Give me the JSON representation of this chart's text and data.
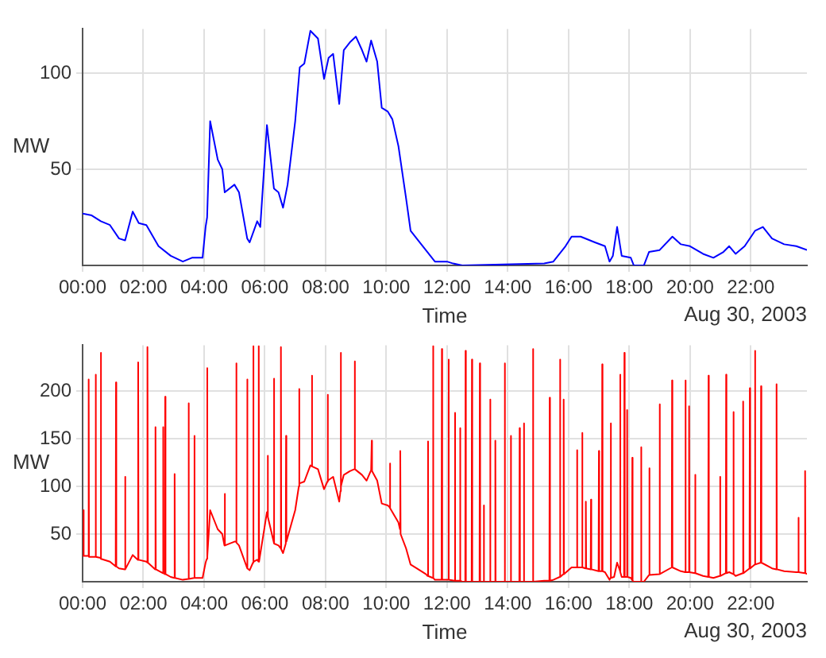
{
  "chart_data": [
    {
      "type": "line",
      "xlabel": "Time",
      "ylabel": "MW",
      "annotations": [
        "Aug 30, 2003"
      ],
      "grid": true,
      "xlim": [
        0,
        23.85
      ],
      "ylim": [
        0,
        123
      ],
      "xticks": [
        {
          "value": 0,
          "label": "00:00"
        },
        {
          "value": 2,
          "label": "02:00"
        },
        {
          "value": 4,
          "label": "04:00"
        },
        {
          "value": 6,
          "label": "06:00"
        },
        {
          "value": 8,
          "label": "08:00"
        },
        {
          "value": 10,
          "label": "10:00"
        },
        {
          "value": 12,
          "label": "12:00"
        },
        {
          "value": 14,
          "label": "14:00"
        },
        {
          "value": 16,
          "label": "16:00"
        },
        {
          "value": 18,
          "label": "18:00"
        },
        {
          "value": 20,
          "label": "20:00"
        },
        {
          "value": 22,
          "label": "22:00"
        }
      ],
      "yticks": [
        50,
        100
      ],
      "series": [
        {
          "color": "#0000ff",
          "x": [
            0,
            0.3,
            0.6,
            0.9,
            1.2,
            1.4,
            1.65,
            1.85,
            2.1,
            2.5,
            2.9,
            3.3,
            3.6,
            3.95,
            4.05,
            4.1,
            4.2,
            4.45,
            4.6,
            4.68,
            5.0,
            5.15,
            5.42,
            5.5,
            5.75,
            5.85,
            6.07,
            6.3,
            6.45,
            6.6,
            6.75,
            7.0,
            7.15,
            7.3,
            7.5,
            7.75,
            7.95,
            8.1,
            8.25,
            8.45,
            8.6,
            8.8,
            9.0,
            9.2,
            9.35,
            9.5,
            9.7,
            9.85,
            10.05,
            10.2,
            10.4,
            10.65,
            10.8,
            11.0,
            11.3,
            11.6,
            12.0,
            12.2,
            12.5,
            15.2,
            15.5,
            15.9,
            16.1,
            16.4,
            16.87,
            17.2,
            17.35,
            17.46,
            17.6,
            17.75,
            18.05,
            18.15,
            18.48,
            18.65,
            19.0,
            19.42,
            19.7,
            20.0,
            20.43,
            20.77,
            21.1,
            21.29,
            21.5,
            21.8,
            22.14,
            22.4,
            22.7,
            23.1,
            23.5,
            23.85
          ],
          "values": [
            27,
            26,
            23,
            21,
            14,
            13,
            28,
            22,
            21,
            10,
            5,
            2,
            4,
            4,
            20,
            25,
            75,
            55,
            50,
            38,
            42,
            38,
            14,
            12,
            23,
            20,
            73,
            40,
            38,
            30,
            42,
            75,
            103,
            105,
            122,
            118,
            97,
            108,
            110,
            84,
            112,
            116,
            119,
            112,
            106,
            117,
            106,
            82,
            80,
            76,
            62,
            35,
            18,
            14,
            8,
            2,
            2,
            1,
            0,
            1,
            2,
            10,
            15,
            15,
            12,
            10,
            2,
            5,
            20,
            5,
            4,
            0,
            0,
            7,
            8,
            15,
            11,
            10,
            6,
            4,
            7,
            10,
            6,
            10,
            18,
            20,
            14,
            11,
            10,
            8
          ]
        }
      ]
    },
    {
      "type": "line",
      "xlabel": "Time",
      "ylabel": "MW",
      "annotations": [
        "Aug 30, 2003"
      ],
      "grid": true,
      "xlim": [
        0,
        23.85
      ],
      "ylim": [
        0,
        248
      ],
      "xticks": [
        {
          "value": 0,
          "label": "00:00"
        },
        {
          "value": 2,
          "label": "02:00"
        },
        {
          "value": 4,
          "label": "04:00"
        },
        {
          "value": 6,
          "label": "06:00"
        },
        {
          "value": 8,
          "label": "08:00"
        },
        {
          "value": 10,
          "label": "10:00"
        },
        {
          "value": 12,
          "label": "12:00"
        },
        {
          "value": 14,
          "label": "14:00"
        },
        {
          "value": 16,
          "label": "16:00"
        },
        {
          "value": 18,
          "label": "18:00"
        },
        {
          "value": 20,
          "label": "20:00"
        },
        {
          "value": 22,
          "label": "22:00"
        }
      ],
      "yticks": [
        50,
        100,
        150,
        200
      ],
      "series": [
        {
          "color": "#ff0000",
          "x": [
            0,
            0.03,
            0.04,
            0.19,
            0.2,
            0.21,
            0.42,
            0.43,
            0.44,
            0.59,
            0.6,
            0.61,
            0.9,
            1.09,
            1.1,
            1.11,
            1.2,
            1.39,
            1.4,
            1.41,
            1.65,
            1.82,
            1.83,
            1.84,
            2.1,
            2.13,
            2.14,
            2.15,
            2.39,
            2.4,
            2.41,
            2.64,
            2.65,
            2.66,
            2.71,
            2.72,
            2.73,
            2.9,
            3.02,
            3.03,
            3.04,
            3.3,
            3.48,
            3.49,
            3.5,
            3.67,
            3.68,
            3.69,
            3.95,
            4.05,
            4.09,
            4.1,
            4.11,
            4.2,
            4.45,
            4.6,
            4.67,
            4.68,
            4.69,
            5.0,
            5.05,
            5.06,
            5.07,
            5.15,
            5.41,
            5.42,
            5.43,
            5.5,
            5.61,
            5.62,
            5.63,
            5.75,
            5.79,
            5.8,
            5.81,
            6.07,
            6.09,
            6.1,
            6.11,
            6.29,
            6.3,
            6.31,
            6.45,
            6.52,
            6.53,
            6.54,
            6.6,
            6.69,
            6.7,
            6.71,
            7.0,
            7.12,
            7.13,
            7.14,
            7.3,
            7.5,
            7.54,
            7.55,
            7.56,
            7.75,
            7.95,
            8.06,
            8.07,
            8.08,
            8.25,
            8.45,
            8.49,
            8.5,
            8.51,
            8.6,
            8.8,
            8.95,
            8.96,
            8.97,
            9.2,
            9.35,
            9.5,
            9.51,
            9.52,
            9.53,
            9.7,
            9.85,
            10.05,
            10.11,
            10.12,
            10.13,
            10.4,
            10.45,
            10.46,
            10.47,
            10.65,
            10.8,
            11.0,
            11.3,
            11.36,
            11.37,
            11.38,
            11.53,
            11.54,
            11.55,
            11.6,
            11.82,
            11.83,
            11.84,
            12.04,
            12.05,
            12.06,
            12.25,
            12.26,
            12.27,
            12.42,
            12.43,
            12.44,
            12.5,
            12.6,
            12.61,
            12.62,
            12.81,
            12.82,
            12.83,
            13.07,
            13.08,
            13.09,
            13.2,
            13.21,
            13.22,
            13.41,
            13.42,
            13.43,
            13.58,
            13.59,
            13.6,
            13.89,
            13.9,
            13.91,
            14.09,
            14.1,
            14.11,
            14.38,
            14.39,
            14.4,
            14.52,
            14.53,
            14.54,
            14.82,
            14.83,
            14.84,
            15.2,
            15.37,
            15.38,
            15.39,
            15.5,
            15.71,
            15.72,
            15.73,
            15.83,
            15.84,
            15.85,
            16.1,
            16.27,
            16.28,
            16.29,
            16.44,
            16.45,
            16.46,
            16.56,
            16.57,
            16.58,
            16.73,
            16.74,
            16.75,
            16.99,
            17.0,
            17.01,
            17.1,
            17.11,
            17.12,
            17.2,
            17.35,
            17.38,
            17.39,
            17.4,
            17.5,
            17.6,
            17.69,
            17.7,
            17.71,
            17.75,
            17.83,
            17.84,
            17.85,
            17.92,
            17.93,
            17.94,
            18.05,
            18.09,
            18.1,
            18.11,
            18.15,
            18.38,
            18.39,
            18.4,
            18.48,
            18.65,
            18.66,
            18.67,
            18.99,
            19.0,
            19.01,
            19.4,
            19.41,
            19.42,
            19.7,
            19.84,
            19.85,
            19.86,
            19.96,
            19.97,
            19.98,
            20.16,
            20.17,
            20.18,
            20.43,
            20.6,
            20.61,
            20.62,
            20.77,
            20.98,
            20.99,
            21.0,
            21.18,
            21.19,
            21.2,
            21.29,
            21.42,
            21.43,
            21.44,
            21.5,
            21.74,
            21.75,
            21.76,
            21.96,
            21.97,
            21.98,
            22.13,
            22.14,
            22.15,
            22.33,
            22.34,
            22.35,
            22.7,
            22.84,
            22.85,
            22.86,
            23.1,
            23.5,
            23.56,
            23.57,
            23.58,
            23.78,
            23.79,
            23.8,
            23.85
          ],
          "values": [
            27,
            75,
            27,
            27,
            212,
            26,
            26,
            217,
            26,
            25,
            240,
            24,
            21,
            16,
            209,
            16,
            14,
            13,
            110,
            13,
            28,
            23,
            230,
            23,
            21,
            20,
            246,
            20,
            13,
            162,
            13,
            9,
            162,
            9,
            8,
            194,
            8,
            5,
            4,
            113,
            4,
            2,
            3,
            187,
            3,
            4,
            153,
            4,
            4,
            20,
            24,
            224,
            26,
            75,
            55,
            50,
            38,
            92,
            38,
            42,
            42,
            229,
            41,
            38,
            15,
            212,
            14,
            12,
            20,
            247,
            21,
            23,
            21,
            247,
            21,
            73,
            70,
            132,
            68,
            42,
            213,
            40,
            38,
            35,
            246,
            34,
            30,
            40,
            153,
            42,
            75,
            100,
            202,
            103,
            105,
            122,
            121,
            216,
            121,
            118,
            97,
            105,
            196,
            106,
            110,
            84,
            95,
            240,
            100,
            112,
            116,
            118,
            231,
            118,
            112,
            106,
            117,
            117,
            148,
            116,
            106,
            82,
            80,
            78,
            124,
            77,
            62,
            55,
            137,
            50,
            35,
            18,
            14,
            8,
            6,
            147,
            6,
            4,
            247,
            4,
            2,
            2,
            244,
            2,
            2,
            233,
            2,
            1,
            177,
            1,
            1,
            161,
            1,
            0,
            0,
            242,
            0,
            0,
            233,
            0,
            0,
            229,
            0,
            0,
            80,
            0,
            0,
            191,
            0,
            0,
            148,
            0,
            0,
            229,
            0,
            0,
            153,
            0,
            0,
            161,
            0,
            0,
            166,
            0,
            0,
            244,
            0,
            1,
            1,
            193,
            1,
            2,
            5,
            233,
            5,
            8,
            191,
            8,
            15,
            15,
            138,
            15,
            15,
            156,
            15,
            14,
            84,
            14,
            13,
            86,
            13,
            11,
            137,
            11,
            11,
            228,
            11,
            10,
            2,
            4,
            166,
            4,
            5,
            20,
            12,
            217,
            10,
            5,
            5,
            240,
            5,
            5,
            180,
            5,
            4,
            2,
            130,
            1,
            0,
            0,
            141,
            0,
            0,
            7,
            119,
            7,
            8,
            186,
            8,
            15,
            211,
            15,
            11,
            10,
            211,
            10,
            10,
            184,
            10,
            9,
            112,
            9,
            6,
            5,
            216,
            5,
            4,
            6,
            110,
            6,
            9,
            217,
            9,
            10,
            8,
            178,
            8,
            6,
            9,
            189,
            9,
            14,
            203,
            14,
            18,
            242,
            18,
            20,
            205,
            20,
            14,
            13,
            207,
            13,
            11,
            10,
            10,
            67,
            10,
            9,
            116,
            9,
            8
          ]
        }
      ]
    }
  ]
}
